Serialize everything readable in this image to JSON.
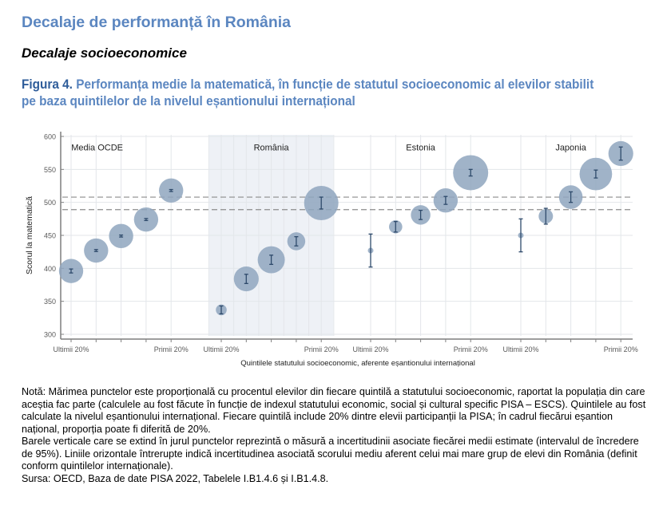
{
  "header": {
    "title": "Decalaje de performanță în România",
    "subtitle": "Decalaje socioeconomice"
  },
  "figure": {
    "label": "Figura 4.",
    "title": "Performanța medie la matematică, în funcție de statutul socioeconomic al elevilor stabilit pe baza quintilelor de la nivelul eșantionului internațional"
  },
  "chart_data": {
    "type": "scatter",
    "title": "Performanța medie la matematică, în funcție de statutul socioeconomic al elevilor",
    "xlabel": "Quintilele statutului socioeconomic, aferente eșantionului internațional",
    "ylabel": "Scorul la matematică",
    "ylim": [
      300,
      600
    ],
    "yticks": [
      300,
      350,
      400,
      450,
      500,
      550,
      600
    ],
    "grid": true,
    "x_tick_labels": {
      "first": "Ultimii 20%",
      "last": "Primii 20%"
    },
    "reference_lines": [
      {
        "type": "dashed-horizontal",
        "y": 508
      },
      {
        "type": "dashed-horizontal",
        "y": 489
      }
    ],
    "bubble_color": "#8fa6be",
    "errorbar_color": "#2e4a6b",
    "highlight_panel": "România",
    "panels": [
      {
        "name": "Media OCDE",
        "categories": [
          "Q1",
          "Q2",
          "Q3",
          "Q4",
          "Q5"
        ],
        "values": [
          396,
          427,
          449,
          474,
          518
        ],
        "ci_halfwidth": [
          3,
          1.5,
          1.5,
          1.5,
          1.5
        ],
        "relative_size": [
          0.2,
          0.2,
          0.2,
          0.2,
          0.2
        ]
      },
      {
        "name": "România",
        "categories": [
          "Q1",
          "Q2",
          "Q3",
          "Q4",
          "Q5"
        ],
        "values": [
          337,
          384,
          413,
          441,
          499
        ],
        "ci_halfwidth": [
          6,
          7,
          7,
          7,
          9
        ],
        "relative_size": [
          0.04,
          0.21,
          0.25,
          0.11,
          0.4
        ]
      },
      {
        "name": "Estonia",
        "categories": [
          "Q1",
          "Q2",
          "Q3",
          "Q4",
          "Q5"
        ],
        "values": [
          427,
          463,
          481,
          503,
          545
        ],
        "ci_halfwidth": [
          25,
          8,
          7,
          6,
          5
        ],
        "relative_size": [
          0.004,
          0.06,
          0.13,
          0.2,
          0.42
        ]
      },
      {
        "name": "Japonia",
        "categories": [
          "Q1",
          "Q2",
          "Q3",
          "Q4",
          "Q5"
        ],
        "values": [
          450,
          479,
          508,
          543,
          574
        ],
        "ci_halfwidth": [
          25,
          12,
          8,
          6,
          10
        ],
        "relative_size": [
          0.004,
          0.07,
          0.19,
          0.36,
          0.21
        ]
      }
    ]
  },
  "notes": {
    "nota": "Notă: Mărimea punctelor este proporțională cu procentul elevilor din fiecare quintilă a statutului socioeconomic, raportat la populația din care aceștia fac parte (calculele au fost făcute în funcție de indexul statutului economic, social și cultural specific PISA – ESCS). Quintilele au fost calculate la nivelul eșantionului internațional. Fiecare quintilă include 20% dintre elevii participanții la PISA; în cadrul fiecărui eșantion național, proporția poate fi diferită de 20%.",
    "bars": "Barele verticale care se extind în jurul punctelor reprezintă o măsură a incertitudinii asociate fiecărei medii estimate (intervalul de încredere de 95%). Liniile orizontale întrerupte indică incertitudinea asociată scorului mediu aferent celui mai mare grup de elevi din România (definit conform quintilelor internaționale).",
    "source": "Sursa: OECD, Baza de date PISA 2022, Tabelele I.B1.4.6 și I.B1.4.8."
  }
}
